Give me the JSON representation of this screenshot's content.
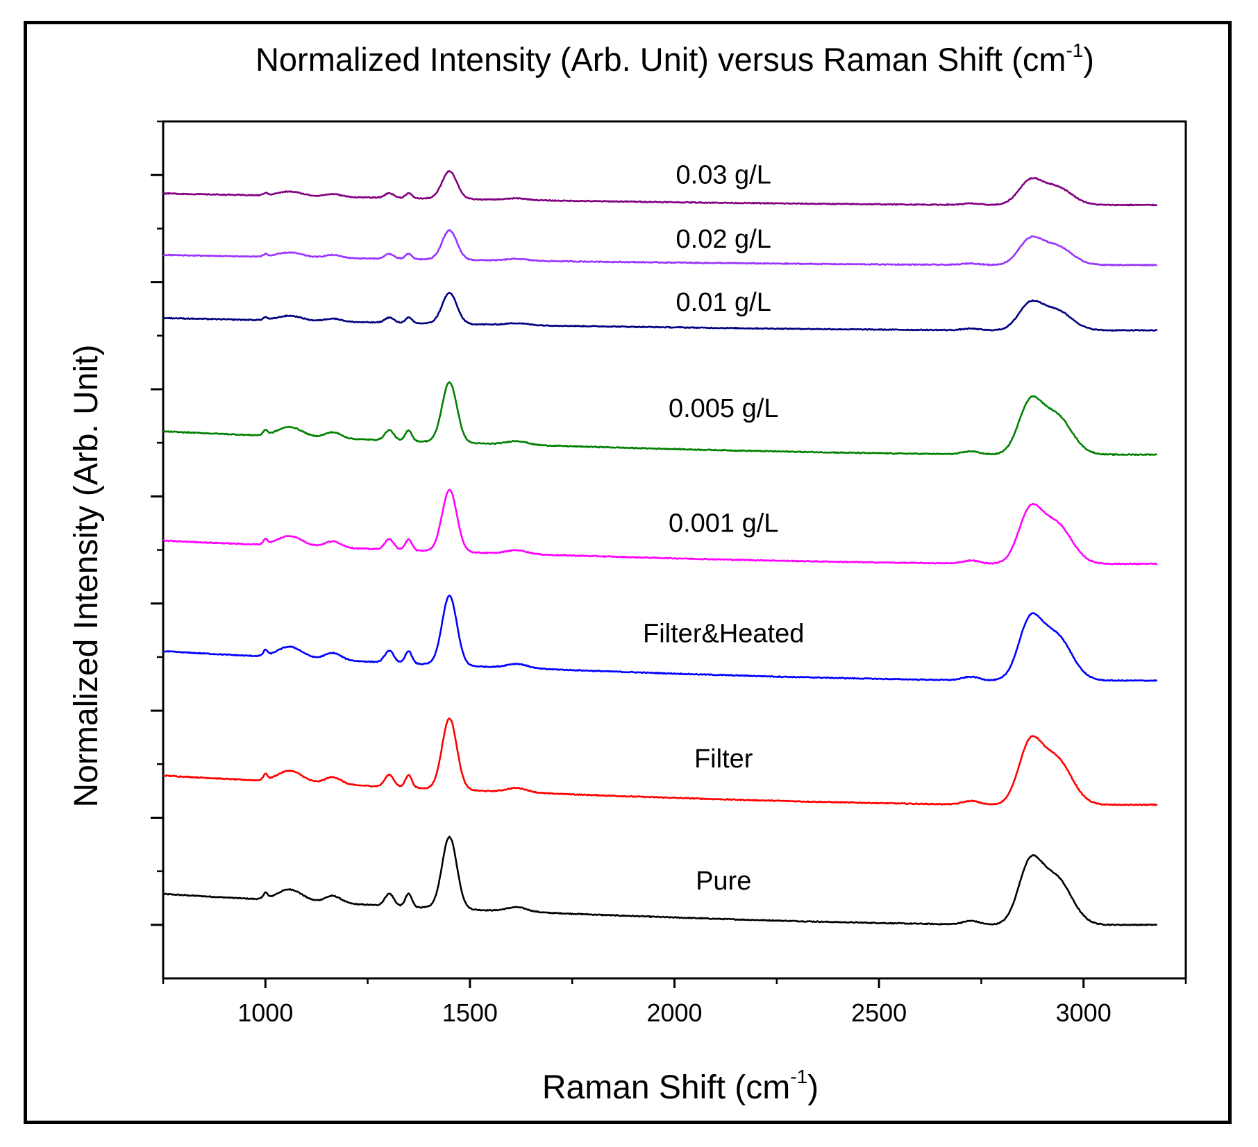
{
  "chart_data": {
    "type": "line",
    "title": "Normalized Intensity (Arb. Unit) versus Raman Shift (cm",
    "title_superscript": "-1",
    "title_suffix": ")",
    "xlabel": "Raman Shift (cm",
    "xlabel_superscript": "-1",
    "xlabel_suffix": ")",
    "ylabel": "Normalized Intensity (Arb. Unit)",
    "xlim": [
      750,
      3250
    ],
    "ylim": [
      -0.5,
      7.5
    ],
    "xticks": [
      1000,
      1500,
      2000,
      2500,
      3000
    ],
    "xtick_labels": [
      "1000",
      "1500",
      "2000",
      "2500",
      "3000"
    ],
    "xminor_step": 250,
    "yticks": [
      0,
      1,
      2,
      3,
      4,
      5,
      6,
      7
    ],
    "ytick_labels_shown": false,
    "grid": false,
    "legend": "inline labels",
    "peaks": [
      {
        "center": 1000,
        "width": 5,
        "rel": 0.08
      },
      {
        "center": 1060,
        "width": 30,
        "rel": 0.16
      },
      {
        "center": 1165,
        "width": 20,
        "rel": 0.1
      },
      {
        "center": 1303,
        "width": 11,
        "rel": 0.17
      },
      {
        "center": 1350,
        "width": 8,
        "rel": 0.18
      },
      {
        "center": 1450,
        "width": 18,
        "rel": 1.0
      },
      {
        "center": 1615,
        "width": 25,
        "rel": 0.06
      },
      {
        "center": 2725,
        "width": 20,
        "rel": 0.05
      },
      {
        "center": 2868,
        "width": 28,
        "rel": 0.78
      },
      {
        "center": 2932,
        "width": 38,
        "rel": 0.65
      }
    ],
    "series": [
      {
        "name": "Pure",
        "color": "#000000",
        "offset": 0.0,
        "amplitude": 0.93,
        "baseline_start": 0.4,
        "baseline_end": 0.0,
        "label": "Pure",
        "label_x": 2120,
        "label_y": 0.33
      },
      {
        "name": "Filter",
        "color": "#ff0000",
        "offset": 1.12,
        "amplitude": 0.92,
        "baseline_start": 0.38,
        "baseline_end": 0.0,
        "label": "Filter",
        "label_x": 2120,
        "label_y": 1.47
      },
      {
        "name": "Filter&Heated",
        "color": "#0000ff",
        "offset": 2.28,
        "amplitude": 0.9,
        "baseline_start": 0.38,
        "baseline_end": 0.0,
        "label": "Filter&Heated",
        "label_x": 2120,
        "label_y": 2.64
      },
      {
        "name": "0.001 g/L",
        "color": "#ff00ff",
        "offset": 3.37,
        "amplitude": 0.8,
        "baseline_start": 0.3,
        "baseline_end": 0.0,
        "label": "0.001 g/L",
        "label_x": 2120,
        "label_y": 3.67
      },
      {
        "name": "0.005 g/L",
        "color": "#008000",
        "offset": 4.39,
        "amplitude": 0.78,
        "baseline_start": 0.3,
        "baseline_end": 0.0,
        "label": "0.005 g/L",
        "label_x": 2120,
        "label_y": 4.74
      },
      {
        "name": "0.01 g/L",
        "color": "#000080",
        "offset": 5.55,
        "amplitude": 0.4,
        "baseline_start": 0.16,
        "baseline_end": 0.0,
        "label": "0.01 g/L",
        "label_x": 2120,
        "label_y": 5.73
      },
      {
        "name": "0.02 g/L",
        "color": "#9933ff",
        "offset": 6.16,
        "amplitude": 0.38,
        "baseline_start": 0.13,
        "baseline_end": 0.0,
        "label": "0.02 g/L",
        "label_x": 2120,
        "label_y": 6.32
      },
      {
        "name": "0.03 g/L",
        "color": "#800080",
        "offset": 6.72,
        "amplitude": 0.36,
        "baseline_start": 0.15,
        "baseline_end": 0.0,
        "label": "0.03 g/L",
        "label_x": 2120,
        "label_y": 6.92
      }
    ]
  }
}
